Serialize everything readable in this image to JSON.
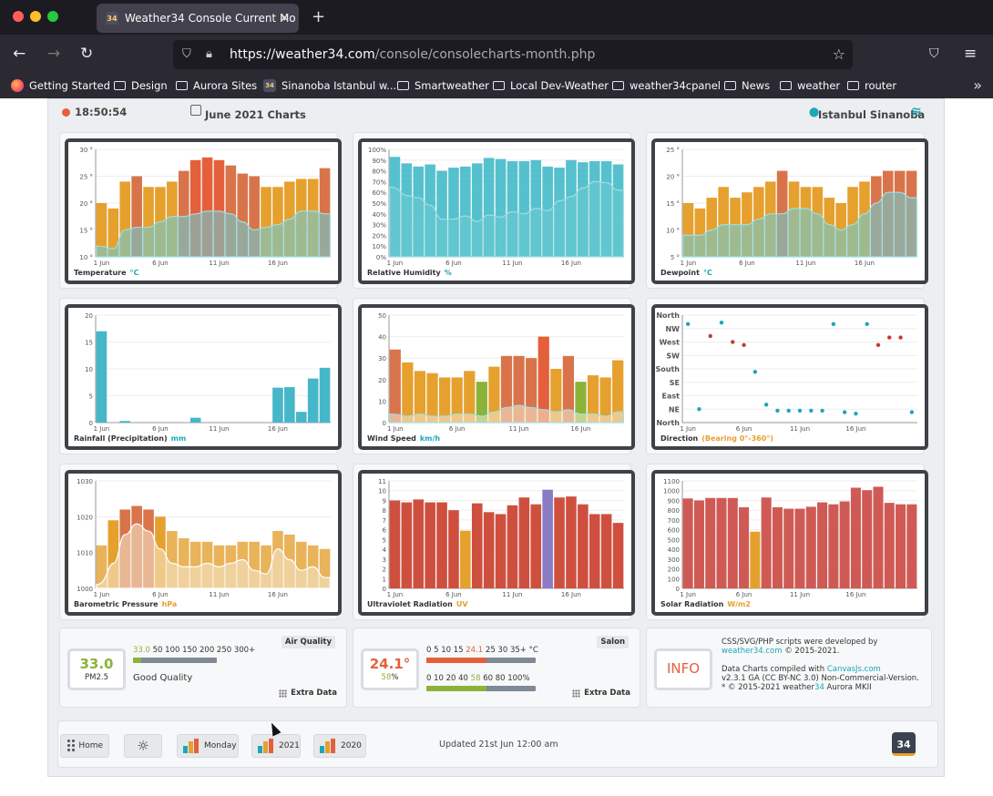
{
  "browser": {
    "tab_title": "Weather34 Console Current Mo",
    "url_host": "https://weather34.com",
    "url_path": "/console/consolecharts-month.php",
    "bookmarks": [
      "Getting Started",
      "Design",
      "Aurora Sites",
      "Sinanoba Istanbul w...",
      "Smartweather",
      "Local Dev-Weather",
      "weather34cpanel",
      "News",
      "weather",
      "router"
    ]
  },
  "header": {
    "time": "18:50:54",
    "title": "June 2021 Charts",
    "location": "Istanbul Sinanoba"
  },
  "colors": {
    "orange": "#e6a02e",
    "red": "#e4603b",
    "teal": "#1ba7b8",
    "purple": "#8a7cc4",
    "green": "#8bb33a"
  },
  "charts": [
    {
      "label": "Temperature",
      "unit": "°C"
    },
    {
      "label": "Relative Humidity",
      "unit": "%"
    },
    {
      "label": "Dewpoint",
      "unit": "°C"
    },
    {
      "label": "Rainfall (Precipitation)",
      "unit": "mm"
    },
    {
      "label": "Wind Speed",
      "unit": "km/h"
    },
    {
      "label": "Direction",
      "unit": "(Bearing 0°-360°)"
    },
    {
      "label": "Barometric Pressure",
      "unit": "hPa"
    },
    {
      "label": "Ultraviolet Radiation",
      "unit": "UV"
    },
    {
      "label": "Solar Radiation",
      "unit": "W/m2"
    }
  ],
  "chart_data": [
    {
      "type": "bar",
      "name": "temperature",
      "x_ticks": [
        "1 Jun",
        "6 Jun",
        "11 Jun",
        "16 Jun"
      ],
      "y_ticks": [
        "10 °",
        "15 °",
        "20 °",
        "25 °",
        "30 °"
      ],
      "ylim": [
        10,
        30
      ],
      "values": [
        20,
        19,
        24,
        25,
        23,
        23,
        24,
        26,
        28,
        28.5,
        28,
        27,
        25.5,
        25,
        23,
        23,
        24,
        24.5,
        24.5,
        26.5
      ],
      "low_values": [
        12,
        11.5,
        15,
        15.5,
        15.5,
        16.5,
        17.5,
        17.5,
        18,
        18.5,
        18.5,
        18,
        16.5,
        15,
        15.5,
        16,
        17,
        18.5,
        18.5,
        18
      ]
    },
    {
      "type": "bar",
      "name": "humidity",
      "x_ticks": [
        "1 Jun",
        "6 Jun",
        "11 Jun",
        "16 Jun"
      ],
      "y_ticks": [
        "0%",
        "10%",
        "20%",
        "30%",
        "40%",
        "50%",
        "60%",
        "70%",
        "80%",
        "90%",
        "100%"
      ],
      "ylim": [
        0,
        100
      ],
      "values": [
        93,
        87,
        84,
        86,
        80,
        83,
        84,
        87,
        92,
        91,
        89,
        89,
        90,
        84,
        83,
        90,
        88,
        89,
        89,
        86
      ],
      "low_values": [
        65,
        57,
        55,
        48,
        35,
        35,
        38,
        33,
        39,
        37,
        42,
        40,
        45,
        43,
        52,
        56,
        64,
        70,
        69,
        62
      ]
    },
    {
      "type": "bar",
      "name": "dewpoint",
      "x_ticks": [
        "1 Jun",
        "6 Jun",
        "11 Jun",
        "16 Jun"
      ],
      "y_ticks": [
        "5 °",
        "10 °",
        "15 °",
        "20 °",
        "25 °"
      ],
      "ylim": [
        5,
        25
      ],
      "values": [
        15,
        14,
        16,
        18,
        16,
        17,
        18,
        19,
        21,
        19,
        18,
        18,
        16,
        15,
        18,
        19,
        20,
        21,
        21,
        21
      ],
      "low_values": [
        9,
        9,
        10,
        11,
        11,
        11,
        12,
        13,
        13,
        14,
        14,
        13,
        11,
        10,
        11,
        13,
        15,
        17,
        17,
        16
      ]
    },
    {
      "type": "bar",
      "name": "rainfall",
      "x_ticks": [
        "1 Jun",
        "6 Jun",
        "11 Jun",
        "16 Jun"
      ],
      "y_ticks": [
        "0",
        "5",
        "10",
        "15",
        "20"
      ],
      "ylim": [
        0,
        20
      ],
      "values": [
        17,
        0,
        0.3,
        0,
        0,
        0,
        0,
        0,
        0.9,
        0,
        0,
        0,
        0,
        0,
        0,
        6.5,
        6.6,
        2,
        8.2,
        10.2
      ]
    },
    {
      "type": "bar",
      "name": "wind_speed",
      "x_ticks": [
        "1 Jun",
        "6 Jun",
        "11 Jun",
        "16 Jun"
      ],
      "y_ticks": [
        "0",
        "10",
        "20",
        "30",
        "40",
        "50"
      ],
      "ylim": [
        0,
        50
      ],
      "values": [
        34,
        28,
        24,
        23,
        21,
        21,
        24,
        19,
        26,
        31,
        31,
        30,
        40,
        25,
        31,
        19,
        22,
        21,
        29
      ],
      "low_values": [
        4,
        3,
        4,
        3,
        3,
        4,
        4,
        3,
        5,
        7,
        8,
        7,
        6,
        5,
        6,
        4,
        4,
        3,
        5
      ]
    },
    {
      "type": "scatter",
      "name": "direction",
      "x_ticks": [
        "1 Jun",
        "6 Jun",
        "11 Jun",
        "16 Jun"
      ],
      "y_ticks": [
        "North",
        "NE",
        "East",
        "SE",
        "South",
        "SW",
        "West",
        "NW",
        "North"
      ],
      "ylim": [
        0,
        360
      ],
      "values": [
        330,
        45,
        290,
        335,
        270,
        260,
        170,
        60,
        40,
        40,
        40,
        40,
        40,
        330,
        35,
        30,
        330,
        260,
        285,
        285,
        35
      ]
    },
    {
      "type": "bar",
      "name": "pressure",
      "x_ticks": [
        "1 Jun",
        "6 Jun",
        "11 Jun",
        "16 Jun"
      ],
      "y_ticks": [
        "1000",
        "1010",
        "1020",
        "1030"
      ],
      "ylim": [
        1000,
        1030
      ],
      "values": [
        1012,
        1019,
        1022,
        1023,
        1022,
        1020,
        1016,
        1014,
        1013,
        1013,
        1012,
        1012,
        1013,
        1013,
        1012,
        1016,
        1015,
        1013,
        1012,
        1011
      ],
      "low_values": [
        1001,
        1007,
        1015,
        1018,
        1016,
        1011,
        1007,
        1006,
        1006,
        1007,
        1006,
        1007,
        1008,
        1005,
        1004,
        1011,
        1008,
        1005,
        1006,
        1003
      ]
    },
    {
      "type": "bar",
      "name": "uv",
      "x_ticks": [
        "1 Jun",
        "6 Jun",
        "11 Jun",
        "16 Jun"
      ],
      "y_ticks": [
        "0",
        "1",
        "2",
        "3",
        "4",
        "5",
        "6",
        "7",
        "8",
        "9",
        "10",
        "11"
      ],
      "ylim": [
        0,
        11
      ],
      "values": [
        9,
        8.8,
        9.1,
        8.8,
        8.8,
        8,
        5.9,
        8.7,
        7.8,
        7.6,
        8.5,
        9.3,
        8.6,
        10.1,
        9.3,
        9.4,
        8.6,
        7.6,
        7.6,
        6.7
      ]
    },
    {
      "type": "bar",
      "name": "solar",
      "x_ticks": [
        "1 Jun",
        "6 Jun",
        "11 Jun",
        "16 Jun"
      ],
      "y_ticks": [
        "0",
        "100",
        "200",
        "300",
        "400",
        "500",
        "600",
        "700",
        "800",
        "900",
        "1000",
        "1100"
      ],
      "ylim": [
        0,
        1100
      ],
      "values": [
        920,
        900,
        925,
        925,
        925,
        830,
        580,
        930,
        830,
        815,
        815,
        835,
        880,
        860,
        890,
        1030,
        1005,
        1040,
        875,
        860,
        860
      ]
    }
  ],
  "air_quality": {
    "title": "Air Quality",
    "value": "33.0",
    "sub": "PM2.5",
    "scale_first": "33.0",
    "scale_rest": "50 100 150 200 250 300+",
    "status": "Good Quality",
    "extra": "Extra Data"
  },
  "salon": {
    "title": "Salon",
    "value": "24.1°",
    "humidity_num": "58",
    "humidity_unit": "%",
    "temp_scale_a": "0 5 10 15",
    "temp_scale_hl": "24.1",
    "temp_scale_b": "25 30 35+ °C",
    "hum_scale_a": "0 10 20 40",
    "hum_scale_hl": "58",
    "hum_scale_b": "60 80 100%",
    "extra": "Extra Data"
  },
  "info": {
    "label": "INFO",
    "line1": "CSS/SVG/PHP scripts were developed by",
    "link1": "weather34.com",
    "line1b": "© 2015-2021.",
    "line2": "Data Charts compiled with",
    "link2": "CanvasJs.com",
    "line3": "v2.3.1 GA (CC BY-NC 3.0) Non-Commercial-Version.",
    "line4a": "* © 2015-2021 weather",
    "line4hl": "34",
    "line4b": " Aurora MKII"
  },
  "footer": {
    "home": "Home",
    "monday": "Monday",
    "y2021": "2021",
    "y2020": "2020",
    "updated": "Updated 21st Jun 12:00 am",
    "logo": "34"
  }
}
